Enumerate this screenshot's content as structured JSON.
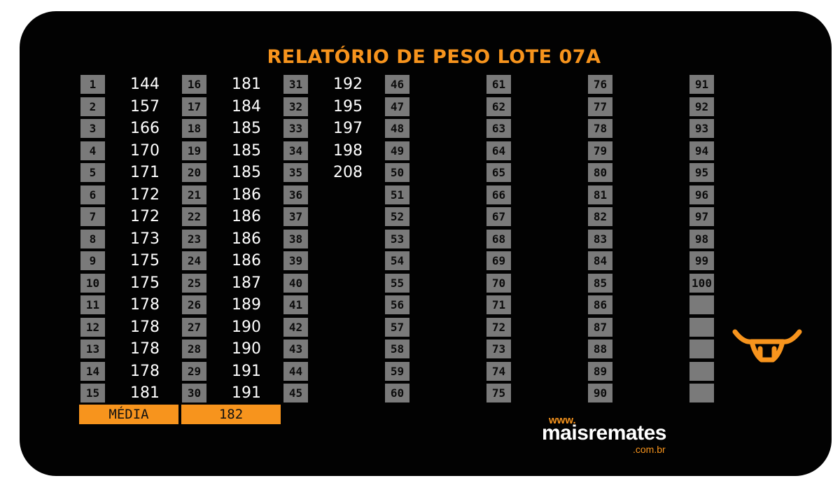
{
  "title": "RELATÓRIO DE PESO LOTE 07A",
  "columns": [
    {
      "rows": [
        {
          "n": "1",
          "v": "144"
        },
        {
          "n": "2",
          "v": "157"
        },
        {
          "n": "3",
          "v": "166"
        },
        {
          "n": "4",
          "v": "170"
        },
        {
          "n": "5",
          "v": "171"
        },
        {
          "n": "6",
          "v": "172"
        },
        {
          "n": "7",
          "v": "172"
        },
        {
          "n": "8",
          "v": "173"
        },
        {
          "n": "9",
          "v": "175"
        },
        {
          "n": "10",
          "v": "175"
        },
        {
          "n": "11",
          "v": "178"
        },
        {
          "n": "12",
          "v": "178"
        },
        {
          "n": "13",
          "v": "178"
        },
        {
          "n": "14",
          "v": "178"
        },
        {
          "n": "15",
          "v": "181"
        }
      ]
    },
    {
      "rows": [
        {
          "n": "16",
          "v": "181"
        },
        {
          "n": "17",
          "v": "184"
        },
        {
          "n": "18",
          "v": "185"
        },
        {
          "n": "19",
          "v": "185"
        },
        {
          "n": "20",
          "v": "185"
        },
        {
          "n": "21",
          "v": "186"
        },
        {
          "n": "22",
          "v": "186"
        },
        {
          "n": "23",
          "v": "186"
        },
        {
          "n": "24",
          "v": "186"
        },
        {
          "n": "25",
          "v": "187"
        },
        {
          "n": "26",
          "v": "189"
        },
        {
          "n": "27",
          "v": "190"
        },
        {
          "n": "28",
          "v": "190"
        },
        {
          "n": "29",
          "v": "191"
        },
        {
          "n": "30",
          "v": "191"
        }
      ]
    },
    {
      "rows": [
        {
          "n": "31",
          "v": "192"
        },
        {
          "n": "32",
          "v": "195"
        },
        {
          "n": "33",
          "v": "197"
        },
        {
          "n": "34",
          "v": "198"
        },
        {
          "n": "35",
          "v": "208"
        },
        {
          "n": "36",
          "v": ""
        },
        {
          "n": "37",
          "v": ""
        },
        {
          "n": "38",
          "v": ""
        },
        {
          "n": "39",
          "v": ""
        },
        {
          "n": "40",
          "v": ""
        },
        {
          "n": "41",
          "v": ""
        },
        {
          "n": "42",
          "v": ""
        },
        {
          "n": "43",
          "v": ""
        },
        {
          "n": "44",
          "v": ""
        },
        {
          "n": "45",
          "v": ""
        }
      ]
    },
    {
      "rows": [
        {
          "n": "46",
          "v": ""
        },
        {
          "n": "47",
          "v": ""
        },
        {
          "n": "48",
          "v": ""
        },
        {
          "n": "49",
          "v": ""
        },
        {
          "n": "50",
          "v": ""
        },
        {
          "n": "51",
          "v": ""
        },
        {
          "n": "52",
          "v": ""
        },
        {
          "n": "53",
          "v": ""
        },
        {
          "n": "54",
          "v": ""
        },
        {
          "n": "55",
          "v": ""
        },
        {
          "n": "56",
          "v": ""
        },
        {
          "n": "57",
          "v": ""
        },
        {
          "n": "58",
          "v": ""
        },
        {
          "n": "59",
          "v": ""
        },
        {
          "n": "60",
          "v": ""
        }
      ]
    },
    {
      "rows": [
        {
          "n": "61",
          "v": ""
        },
        {
          "n": "62",
          "v": ""
        },
        {
          "n": "63",
          "v": ""
        },
        {
          "n": "64",
          "v": ""
        },
        {
          "n": "65",
          "v": ""
        },
        {
          "n": "66",
          "v": ""
        },
        {
          "n": "67",
          "v": ""
        },
        {
          "n": "68",
          "v": ""
        },
        {
          "n": "69",
          "v": ""
        },
        {
          "n": "70",
          "v": ""
        },
        {
          "n": "71",
          "v": ""
        },
        {
          "n": "72",
          "v": ""
        },
        {
          "n": "73",
          "v": ""
        },
        {
          "n": "74",
          "v": ""
        },
        {
          "n": "75",
          "v": ""
        }
      ]
    },
    {
      "rows": [
        {
          "n": "76",
          "v": ""
        },
        {
          "n": "77",
          "v": ""
        },
        {
          "n": "78",
          "v": ""
        },
        {
          "n": "79",
          "v": ""
        },
        {
          "n": "80",
          "v": ""
        },
        {
          "n": "81",
          "v": ""
        },
        {
          "n": "82",
          "v": ""
        },
        {
          "n": "83",
          "v": ""
        },
        {
          "n": "84",
          "v": ""
        },
        {
          "n": "85",
          "v": ""
        },
        {
          "n": "86",
          "v": ""
        },
        {
          "n": "87",
          "v": ""
        },
        {
          "n": "88",
          "v": ""
        },
        {
          "n": "89",
          "v": ""
        },
        {
          "n": "90",
          "v": ""
        }
      ]
    },
    {
      "rows": [
        {
          "n": "91",
          "v": ""
        },
        {
          "n": "92",
          "v": ""
        },
        {
          "n": "93",
          "v": ""
        },
        {
          "n": "94",
          "v": ""
        },
        {
          "n": "95",
          "v": ""
        },
        {
          "n": "96",
          "v": ""
        },
        {
          "n": "97",
          "v": ""
        },
        {
          "n": "98",
          "v": ""
        },
        {
          "n": "99",
          "v": ""
        },
        {
          "n": "100",
          "v": ""
        },
        {
          "n": "",
          "v": ""
        },
        {
          "n": "",
          "v": ""
        },
        {
          "n": "",
          "v": ""
        },
        {
          "n": "",
          "v": ""
        },
        {
          "n": "",
          "v": ""
        }
      ]
    }
  ],
  "summary": {
    "label": "MÉDIA",
    "value": "182"
  },
  "brand": {
    "www": "www.",
    "name": "maisremates",
    "domain": ".com.br"
  },
  "logo_icon": "bull-head-icon",
  "colors": {
    "accent": "#f7941d",
    "background": "#020202",
    "cell": "#7a7a7a",
    "text": "#ffffff"
  }
}
